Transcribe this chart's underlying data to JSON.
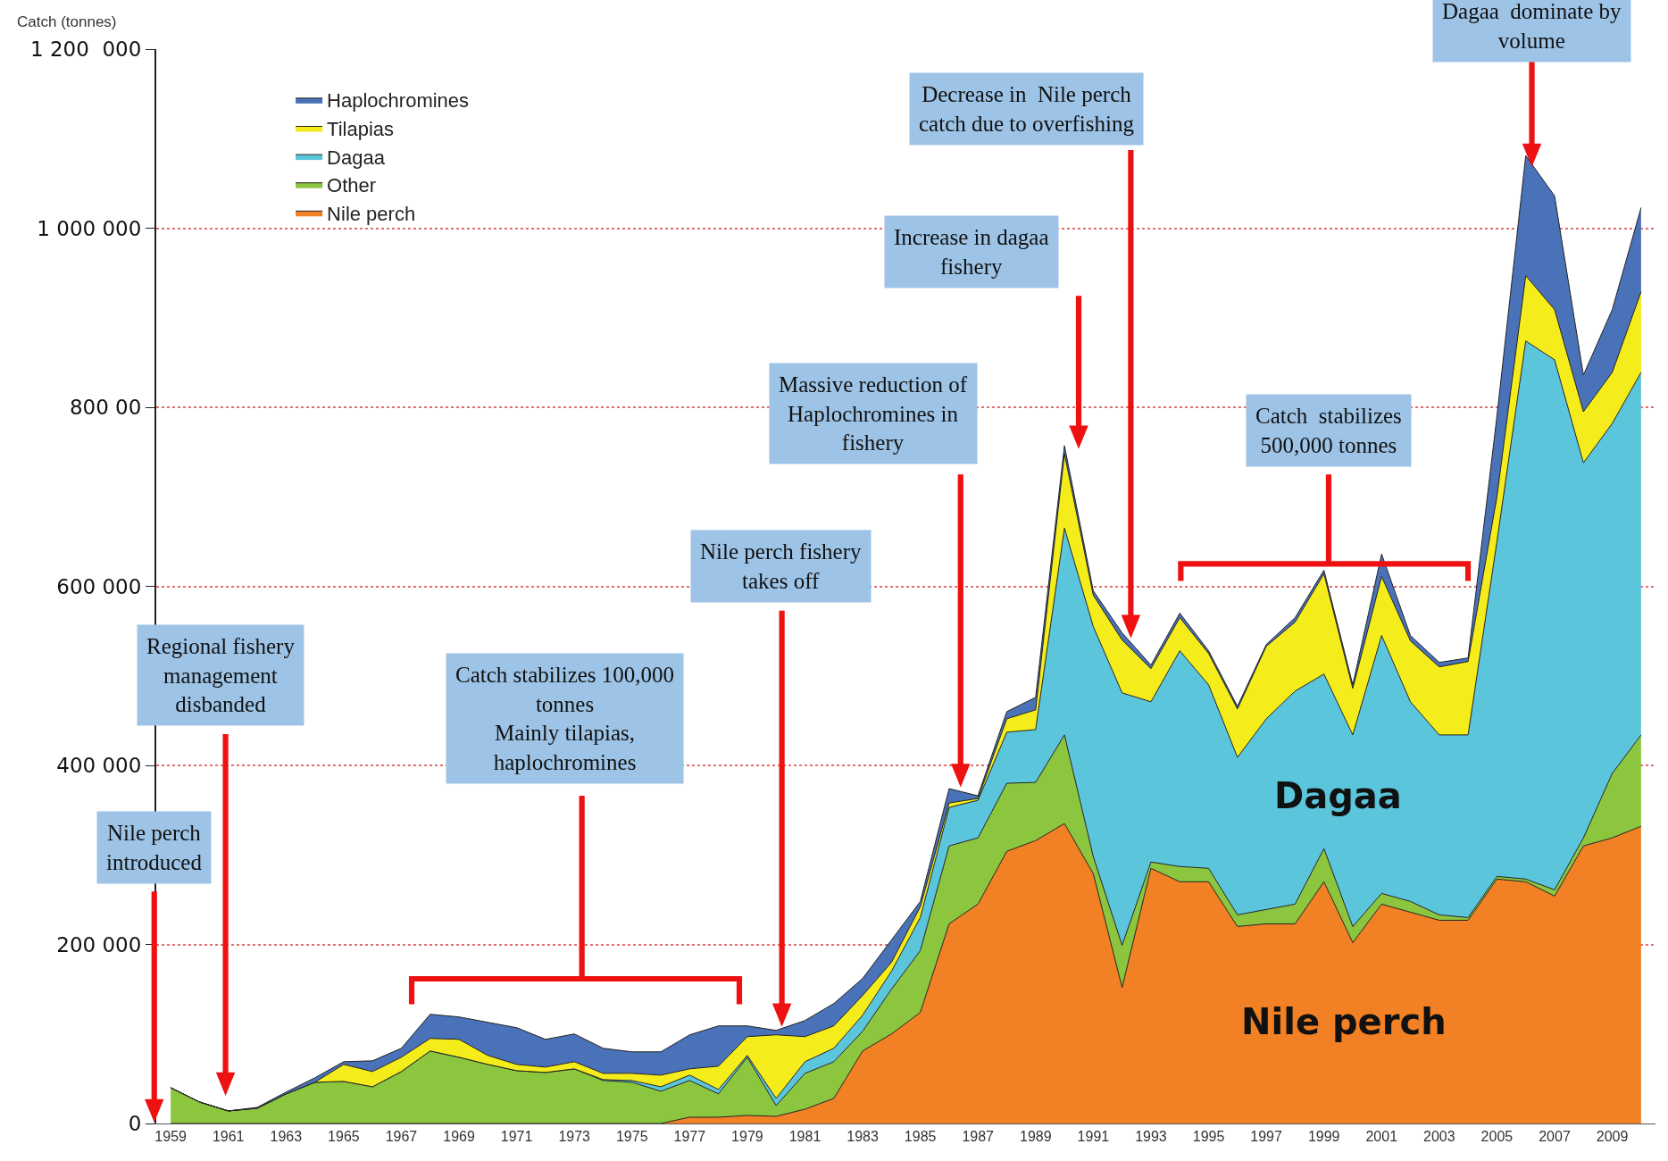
{
  "chart_data": {
    "type": "area",
    "stacked": true,
    "ylabel": "Catch (tonnes)",
    "legend": "top left",
    "grid": "y",
    "x": [
      1959,
      1960,
      1961,
      1962,
      1963,
      1964,
      1965,
      1966,
      1967,
      1968,
      1969,
      1970,
      1971,
      1972,
      1973,
      1974,
      1975,
      1976,
      1977,
      1978,
      1979,
      1980,
      1981,
      1982,
      1983,
      1984,
      1985,
      1986,
      1987,
      1988,
      1989,
      1990,
      1991,
      1992,
      1993,
      1994,
      1995,
      1996,
      1997,
      1998,
      1999,
      2000,
      2001,
      2002,
      2003,
      2004,
      2005,
      2006,
      2007,
      2008,
      2009,
      2010
    ],
    "xlim": [
      1958.5,
      2010.5
    ],
    "xticks": [
      1959,
      1961,
      1963,
      1965,
      1967,
      1969,
      1971,
      1973,
      1975,
      1977,
      1979,
      1981,
      1983,
      1985,
      1987,
      1989,
      1991,
      1993,
      1995,
      1997,
      1999,
      2001,
      2003,
      2005,
      2007,
      2009
    ],
    "ylim": [
      0,
      1200000
    ],
    "yticks": [
      0,
      {
        "value": 200000,
        "label": "200 000"
      },
      {
        "value": 400000,
        "label": "400 000"
      },
      {
        "value": 600000,
        "label": "600 000"
      },
      {
        "value": 800000,
        "label": "800 00"
      },
      {
        "value": 1000000,
        "label": "1 000 000"
      },
      {
        "value": 1200000,
        "label": "1 200  000"
      }
    ],
    "series": [
      {
        "name": "Nile perch",
        "color": "#f28024",
        "values": [
          0,
          0,
          0,
          0,
          0,
          0,
          0,
          0,
          0,
          0,
          0,
          0,
          0,
          0,
          0,
          0,
          0,
          0,
          7000,
          7000,
          9000,
          8000,
          16000,
          28000,
          81000,
          100000,
          124000,
          223000,
          245000,
          304000,
          316000,
          335000,
          279000,
          152000,
          285000,
          270000,
          270000,
          220000,
          223000,
          223000,
          270000,
          202000,
          245000,
          236000,
          227000,
          227000,
          273000,
          270000,
          254000,
          310000,
          319000,
          332000
        ]
      },
      {
        "name": "Other",
        "color": "#8cc63f",
        "values": [
          40000,
          24000,
          14000,
          17000,
          33000,
          46000,
          47000,
          41000,
          58000,
          81000,
          74000,
          66000,
          59000,
          57000,
          61000,
          48000,
          46000,
          36000,
          41000,
          26000,
          65000,
          12000,
          40000,
          41000,
          22000,
          50000,
          69000,
          87000,
          74000,
          76000,
          65000,
          99000,
          19000,
          47000,
          7000,
          17000,
          15000,
          13000,
          16000,
          22000,
          37000,
          18000,
          12000,
          12000,
          6000,
          3000,
          3000,
          3000,
          7000,
          9000,
          72000,
          102000
        ]
      },
      {
        "name": "Dagaa",
        "color": "#5bc5dc",
        "values": [
          0,
          0,
          0,
          0,
          0,
          0,
          0,
          0,
          0,
          0,
          0,
          0,
          0,
          0,
          0,
          1000,
          2000,
          5000,
          6000,
          5000,
          2000,
          8000,
          13000,
          15000,
          18000,
          20000,
          37000,
          43000,
          42000,
          57000,
          59000,
          231000,
          257000,
          282000,
          179000,
          241000,
          205000,
          176000,
          213000,
          238000,
          195000,
          214000,
          288000,
          223000,
          201000,
          204000,
          374000,
          601000,
          592000,
          419000,
          391000,
          405000
        ]
      },
      {
        "name": "Tilapias",
        "color": "#f5ec1c",
        "values": [
          0,
          0,
          0,
          0,
          0,
          0,
          19000,
          17000,
          16000,
          14000,
          20000,
          10000,
          7000,
          6000,
          8000,
          7000,
          8000,
          13000,
          7000,
          26000,
          21000,
          71000,
          28000,
          25000,
          22000,
          10000,
          12000,
          5000,
          2000,
          15000,
          22000,
          83000,
          35000,
          59000,
          37000,
          37000,
          35000,
          54000,
          81000,
          77000,
          112000,
          52000,
          66000,
          68000,
          76000,
          82000,
          50000,
          73000,
          56000,
          57000,
          57000,
          90000
        ]
      },
      {
        "name": "Haplochromines",
        "color": "#4a72b8",
        "values": [
          0,
          0,
          0,
          1000,
          2000,
          5000,
          3000,
          12000,
          10000,
          27000,
          25000,
          37000,
          41000,
          31000,
          31000,
          28000,
          24000,
          26000,
          38000,
          45000,
          12000,
          5000,
          18000,
          25000,
          19000,
          25000,
          6000,
          16000,
          3000,
          8000,
          14000,
          9000,
          5000,
          8000,
          4000,
          5000,
          3000,
          3000,
          2000,
          5000,
          4000,
          4000,
          25000,
          6000,
          5000,
          4000,
          90000,
          134000,
          127000,
          41000,
          70000,
          94000
        ]
      }
    ],
    "annotations": [
      "Nile perch\nintroduced",
      "Regional fishery\nmanagement\ndisbanded",
      "Catch stabilizes 100,000\ntonnes\nMainly tilapias,\nhaplochromines",
      "Nile perch fishery\ntakes off",
      "Massive reduction of\nHaplochromines in\nfishery",
      "Increase in dagaa\nfishery",
      "Decrease in  Nile perch\ncatch due to overfishing",
      "Catch  stabilizes\n500,000 tonnes",
      "Dagaa  dominate by\nvolume",
      "Dagaa",
      "Nile perch"
    ]
  }
}
